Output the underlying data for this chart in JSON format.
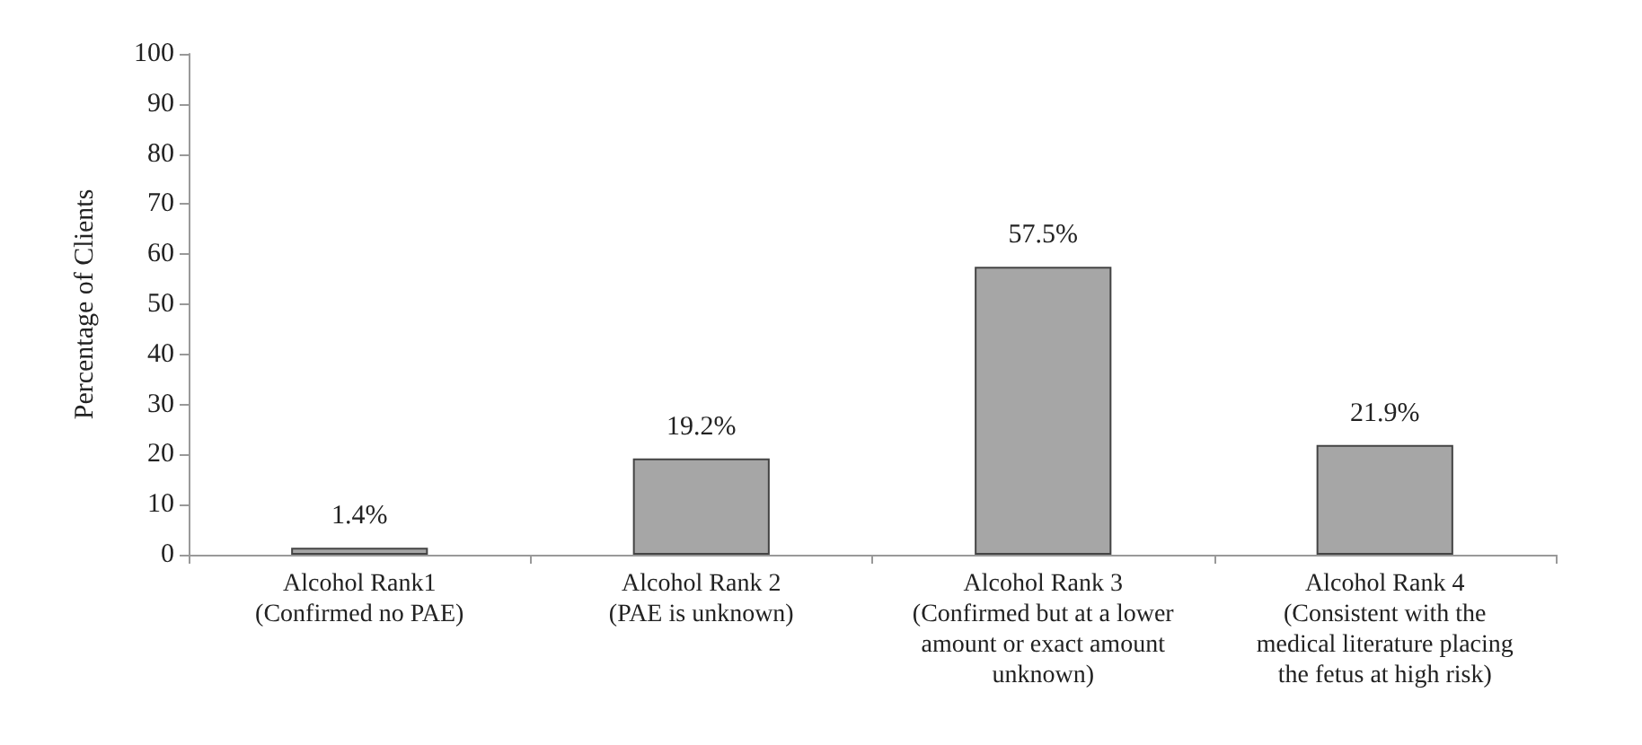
{
  "chart_data": {
    "type": "bar",
    "ylabel": "Percentage of Clients",
    "categories": [
      "Alcohol Rank1\n(Confirmed no PAE)",
      "Alcohol Rank 2\n(PAE is unknown)",
      "Alcohol Rank 3\n(Confirmed but at a lower\namount or exact amount\nunknown)",
      "Alcohol Rank 4\n(Consistent with the\nmedical literature placing\nthe fetus at high risk)"
    ],
    "values": [
      1.4,
      19.2,
      57.5,
      21.9
    ],
    "value_labels": [
      "1.4%",
      "19.2%",
      "57.5%",
      "21.9%"
    ],
    "color": "#a6a6a6",
    "ylim": [
      0,
      100
    ],
    "yticks": [
      0,
      10,
      20,
      30,
      40,
      50,
      60,
      70,
      80,
      90,
      100
    ],
    "grid": false
  }
}
